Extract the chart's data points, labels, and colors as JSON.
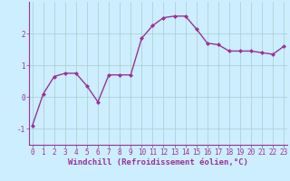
{
  "x": [
    0,
    1,
    2,
    3,
    4,
    5,
    6,
    7,
    8,
    9,
    10,
    11,
    12,
    13,
    14,
    15,
    16,
    17,
    18,
    19,
    20,
    21,
    22,
    23
  ],
  "y": [
    -0.9,
    0.1,
    0.65,
    0.75,
    0.75,
    0.35,
    -0.15,
    0.7,
    0.7,
    0.7,
    1.85,
    2.25,
    2.5,
    2.55,
    2.55,
    2.15,
    1.7,
    1.65,
    1.45,
    1.45,
    1.45,
    1.4,
    1.35,
    1.6
  ],
  "line_color": "#993399",
  "marker": "D",
  "marker_size": 2.0,
  "line_width": 1.0,
  "bg_color": "#cceeff",
  "grid_color": "#aacccc",
  "xlabel": "Windchill (Refroidissement éolien,°C)",
  "xlabel_fontsize": 6.5,
  "tick_fontsize": 5.5,
  "yticks": [
    -1,
    0,
    1,
    2
  ],
  "xticks": [
    0,
    1,
    2,
    3,
    4,
    5,
    6,
    7,
    8,
    9,
    10,
    11,
    12,
    13,
    14,
    15,
    16,
    17,
    18,
    19,
    20,
    21,
    22,
    23
  ],
  "ylim": [
    -1.5,
    3.0
  ],
  "xlim": [
    -0.3,
    23.3
  ]
}
